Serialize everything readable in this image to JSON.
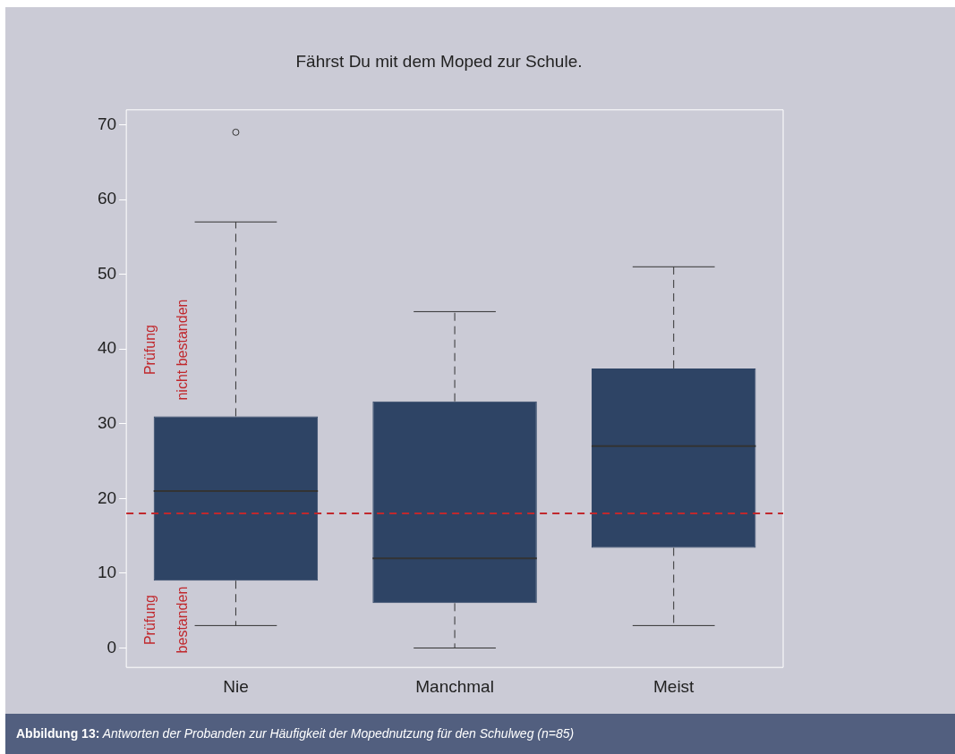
{
  "chart_data": {
    "type": "box",
    "title": "Fährst Du mit dem Moped zur Schule.",
    "categories": [
      "Nie",
      "Manchmal",
      "Meist"
    ],
    "color": "#2e4465",
    "boxes": [
      {
        "low": 3,
        "q1": 9,
        "median": 21,
        "q3": 31,
        "high": 57,
        "outliers": [
          69
        ]
      },
      {
        "low": 0,
        "q1": 6,
        "median": 12,
        "q3": 33,
        "high": 45
      },
      {
        "low": 3,
        "q1": 13.4,
        "median": 27,
        "q3": 37.4,
        "high": 51
      }
    ],
    "ylim": [
      -2.6,
      72
    ],
    "yticks": [
      0,
      10,
      20,
      30,
      40,
      50,
      60,
      70
    ],
    "grid": false,
    "legend": false,
    "ref_lines": [
      {
        "axis": "y",
        "value": 18,
        "color": "#c0282d",
        "line_style": "dashed"
      }
    ],
    "annotations": [
      "Prüfung nicht bestanden",
      "Prüfung bestanden",
      "Abbildung 13: Antworten der Probanden zur Häufigkeit der Mopednutzung für den Schulweg (n=85)"
    ]
  }
}
